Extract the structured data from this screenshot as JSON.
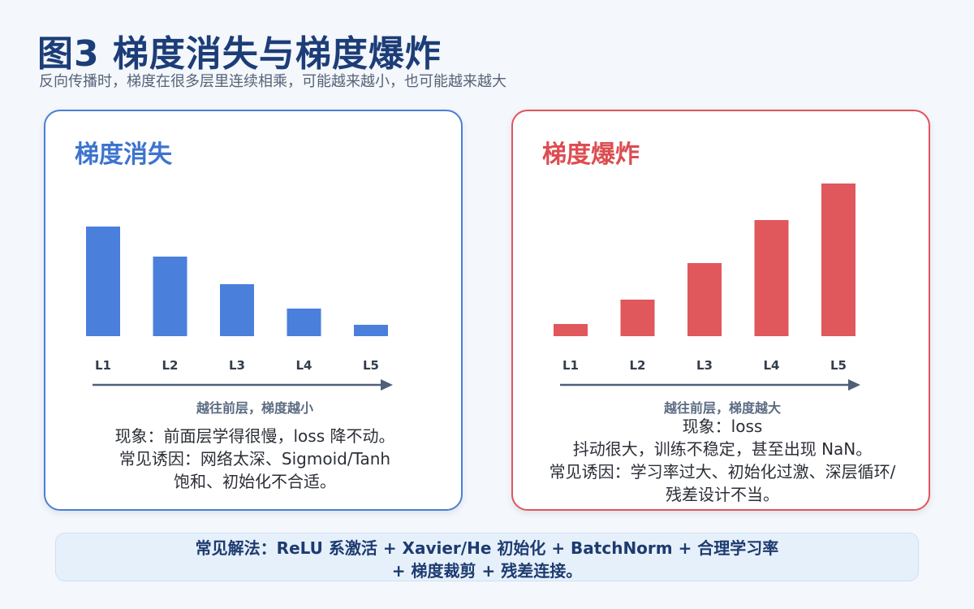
{
  "title": "图3  梯度消失与梯度爆炸",
  "subtitle": "反向传播时，梯度在很多层里连续相乘，可能越来越小，也可能越来越大",
  "panels": {
    "vanishing": {
      "title": "梯度消失",
      "axis_caption": "越往前层，梯度越小",
      "desc_lines": [
        "现象：前面层学得很慢，loss 降不动。",
        "常见诱因：网络太深、Sigmoid/Tanh",
        "饱和、初始化不合适。"
      ],
      "color": "#4a80dc"
    },
    "exploding": {
      "title": "梯度爆炸",
      "axis_caption": "越往前层，梯度越大",
      "desc_lines": [
        "现象：loss",
        "抖动很大，训练不稳定，甚至出现 NaN。",
        "常见诱因：学习率过大、初始化过激、深层循环/",
        "残差设计不当。"
      ],
      "color": "#e0575c"
    }
  },
  "chart_data": [
    {
      "type": "bar",
      "categories": [
        "L1",
        "L2",
        "L3",
        "L4",
        "L5"
      ],
      "values": [
        135,
        98,
        64,
        34,
        14
      ],
      "ylim": [
        0,
        190
      ]
    },
    {
      "type": "bar",
      "categories": [
        "L1",
        "L2",
        "L3",
        "L4",
        "L5"
      ],
      "values": [
        15,
        45,
        90,
        143,
        188
      ],
      "ylim": [
        0,
        190
      ]
    }
  ],
  "bottom": {
    "line1": "常见解法：ReLU 系激活 + Xavier/He 初始化 + BatchNorm + 合理学习率",
    "line2": "+ 梯度裁剪 + 残差连接。"
  }
}
